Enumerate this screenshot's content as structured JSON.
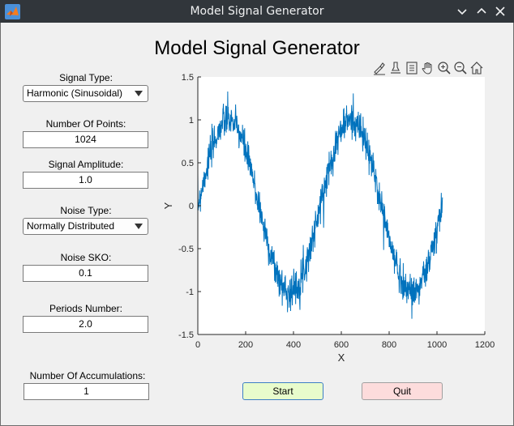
{
  "window": {
    "title": "Model Signal Generator"
  },
  "main": {
    "title": "Model Signal Generator"
  },
  "controls": {
    "signal_type": {
      "label": "Signal Type:",
      "value": "Harmonic (Sinusoidal)"
    },
    "num_points": {
      "label": "Number Of Points:",
      "value": "1024"
    },
    "amplitude": {
      "label": "Signal Amplitude:",
      "value": "1.0"
    },
    "noise_type": {
      "label": "Noise Type:",
      "value": "Normally Distributed"
    },
    "noise_sko": {
      "label": "Noise SKO:",
      "value": "0.1"
    },
    "periods": {
      "label": "Periods Number:",
      "value": "2.0"
    },
    "accumulations": {
      "label": "Number Of Accumulations:",
      "value": "1"
    }
  },
  "buttons": {
    "start": "Start",
    "quit": "Quit"
  },
  "toolbar": {
    "icons": [
      "brush-icon",
      "data-tips-icon",
      "legend-icon",
      "pan-icon",
      "zoom-in-icon",
      "zoom-out-icon",
      "home-icon"
    ]
  },
  "chart_data": {
    "type": "line",
    "title": "",
    "xlabel": "X",
    "ylabel": "Y",
    "xlim": [
      0,
      1200
    ],
    "ylim": [
      -1.5,
      1.5
    ],
    "xticks": [
      0,
      200,
      400,
      600,
      800,
      1000,
      1200
    ],
    "yticks": [
      -1.5,
      -1,
      -0.5,
      0,
      0.5,
      1,
      1.5
    ],
    "grid": false,
    "series": [
      {
        "color": "#0072bd",
        "signal": "sine",
        "amplitude": 1.0,
        "periods": 2.0,
        "num_points": 1024,
        "noise_sko": 0.1
      }
    ],
    "colors": {
      "line": "#0072bd",
      "axes_bg": "#ffffff"
    }
  }
}
